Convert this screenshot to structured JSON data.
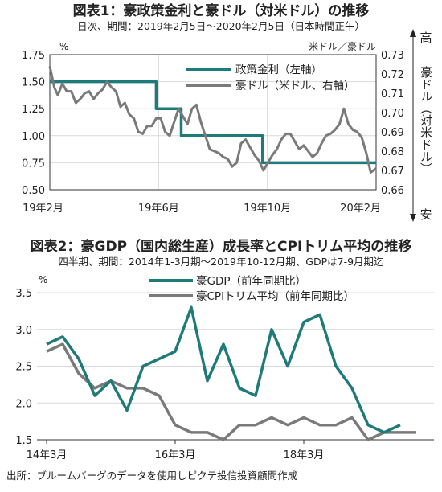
{
  "colors": {
    "teal": "#1f7a7a",
    "gray": "#7a7a7a",
    "grid": "#d9d9d9",
    "text": "#222222"
  },
  "chart_data": [
    {
      "type": "line",
      "title": "図表1：豪政策金利と豪ドル（対米ドル）の推移",
      "subtitle": "日次、期間：2019年2月5日〜2020年2月5日（日本時間正午）",
      "x_tick_labels": [
        "19年2月",
        "19年6月",
        "19年10月",
        "20年2月"
      ],
      "y_left": {
        "unit": "%",
        "ticks": [
          "1.75",
          "1.50",
          "1.25",
          "1.00",
          "0.75",
          "0.50"
        ],
        "ylim": [
          0.5,
          1.75
        ]
      },
      "y_right": {
        "unit": "米ドル／豪ドル",
        "ticks": [
          "0.73",
          "0.72",
          "0.71",
          "0.70",
          "0.69",
          "0.68",
          "0.67",
          "0.66"
        ],
        "ylim": [
          0.66,
          0.73
        ]
      },
      "arrow_labels": {
        "top": "高",
        "middle": "豪ドル（対米ドル）",
        "bottom": "安"
      },
      "grid": true,
      "legend_position": "top-right",
      "series": [
        {
          "name": "政策金利（左軸）",
          "axis": "left",
          "color": "#1f7a7a",
          "x": [
            "2019-02-05",
            "2019-06-04",
            "2019-06-04",
            "2019-07-02",
            "2019-07-02",
            "2019-10-01",
            "2019-10-01",
            "2020-02-05"
          ],
          "values": [
            1.5,
            1.5,
            1.25,
            1.25,
            1.0,
            1.0,
            0.75,
            0.75
          ]
        },
        {
          "name": "豪ドル（米ドル、右軸）",
          "axis": "right",
          "color": "#7a7a7a",
          "x": [
            "2019-02-05",
            "2019-02-10",
            "2019-02-14",
            "2019-02-19",
            "2019-02-24",
            "2019-03-01",
            "2019-03-06",
            "2019-03-11",
            "2019-03-16",
            "2019-03-21",
            "2019-03-26",
            "2019-03-31",
            "2019-04-05",
            "2019-04-10",
            "2019-04-15",
            "2019-04-20",
            "2019-04-25",
            "2019-04-30",
            "2019-05-05",
            "2019-05-10",
            "2019-05-15",
            "2019-05-20",
            "2019-05-25",
            "2019-05-30",
            "2019-06-04",
            "2019-06-09",
            "2019-06-14",
            "2019-06-19",
            "2019-06-24",
            "2019-06-29",
            "2019-07-04",
            "2019-07-09",
            "2019-07-14",
            "2019-07-19",
            "2019-07-24",
            "2019-07-29",
            "2019-08-03",
            "2019-08-08",
            "2019-08-13",
            "2019-08-18",
            "2019-08-23",
            "2019-08-28",
            "2019-09-02",
            "2019-09-07",
            "2019-09-12",
            "2019-09-17",
            "2019-09-22",
            "2019-09-27",
            "2019-10-02",
            "2019-10-07",
            "2019-10-12",
            "2019-10-17",
            "2019-10-22",
            "2019-10-27",
            "2019-11-01",
            "2019-11-06",
            "2019-11-11",
            "2019-11-16",
            "2019-11-21",
            "2019-11-26",
            "2019-12-01",
            "2019-12-06",
            "2019-12-11",
            "2019-12-16",
            "2019-12-21",
            "2019-12-26",
            "2019-12-31",
            "2020-01-05",
            "2020-01-10",
            "2020-01-15",
            "2020-01-20",
            "2020-01-25",
            "2020-01-30",
            "2020-02-05"
          ],
          "values": [
            0.724,
            0.713,
            0.709,
            0.715,
            0.711,
            0.711,
            0.705,
            0.707,
            0.71,
            0.711,
            0.707,
            0.71,
            0.712,
            0.716,
            0.713,
            0.711,
            0.703,
            0.705,
            0.699,
            0.697,
            0.69,
            0.689,
            0.693,
            0.693,
            0.697,
            0.697,
            0.69,
            0.688,
            0.695,
            0.702,
            0.698,
            0.694,
            0.702,
            0.704,
            0.695,
            0.688,
            0.681,
            0.68,
            0.679,
            0.677,
            0.676,
            0.672,
            0.674,
            0.684,
            0.686,
            0.682,
            0.678,
            0.675,
            0.67,
            0.674,
            0.678,
            0.681,
            0.686,
            0.689,
            0.689,
            0.685,
            0.681,
            0.683,
            0.68,
            0.677,
            0.679,
            0.684,
            0.688,
            0.689,
            0.691,
            0.694,
            0.702,
            0.694,
            0.691,
            0.69,
            0.687,
            0.679,
            0.669,
            0.671
          ]
        }
      ]
    },
    {
      "type": "line",
      "title": "図表2：豪GDP（国内総生産）成長率とCPIトリム平均の推移",
      "subtitle": "四半期、期間：2014年1-3月期〜2019年10-12月期、GDPは7-9月期迄",
      "x_tick_labels": [
        "14年3月",
        "16年3月",
        "18年3月"
      ],
      "y_left": {
        "unit": "%",
        "ticks": [
          "3.5",
          "3.0",
          "2.5",
          "2.0",
          "1.5"
        ],
        "ylim": [
          1.5,
          3.5
        ]
      },
      "grid": true,
      "legend_position": "top-center",
      "source": "出所：ブルームバーグのデータを使用しピクテ投信投資顧問作成",
      "series": [
        {
          "name": "豪GDP（前年同期比）",
          "color": "#1f7a7a",
          "x": [
            "2014Q1",
            "2014Q2",
            "2014Q3",
            "2014Q4",
            "2015Q1",
            "2015Q2",
            "2015Q3",
            "2015Q4",
            "2016Q1",
            "2016Q2",
            "2016Q3",
            "2016Q4",
            "2017Q1",
            "2017Q2",
            "2017Q3",
            "2017Q4",
            "2018Q1",
            "2018Q2",
            "2018Q3",
            "2018Q4",
            "2019Q1",
            "2019Q2",
            "2019Q3"
          ],
          "values": [
            2.8,
            2.9,
            2.6,
            2.1,
            2.3,
            1.9,
            2.5,
            2.6,
            2.7,
            3.3,
            2.3,
            2.8,
            2.2,
            2.1,
            3.0,
            2.5,
            3.1,
            3.2,
            2.5,
            2.2,
            1.7,
            1.6,
            1.7
          ]
        },
        {
          "name": "豪CPIトリム平均（前年同期比）",
          "color": "#7a7a7a",
          "x": [
            "2014Q1",
            "2014Q2",
            "2014Q3",
            "2014Q4",
            "2015Q1",
            "2015Q2",
            "2015Q3",
            "2015Q4",
            "2016Q1",
            "2016Q2",
            "2016Q3",
            "2016Q4",
            "2017Q1",
            "2017Q2",
            "2017Q3",
            "2017Q4",
            "2018Q1",
            "2018Q2",
            "2018Q3",
            "2018Q4",
            "2019Q1",
            "2019Q2",
            "2019Q3",
            "2019Q4"
          ],
          "values": [
            2.7,
            2.8,
            2.4,
            2.2,
            2.3,
            2.2,
            2.2,
            2.1,
            1.7,
            1.6,
            1.6,
            1.5,
            1.7,
            1.7,
            1.8,
            1.7,
            1.8,
            1.7,
            1.7,
            1.8,
            1.5,
            1.6,
            1.6,
            1.6
          ]
        }
      ]
    }
  ]
}
